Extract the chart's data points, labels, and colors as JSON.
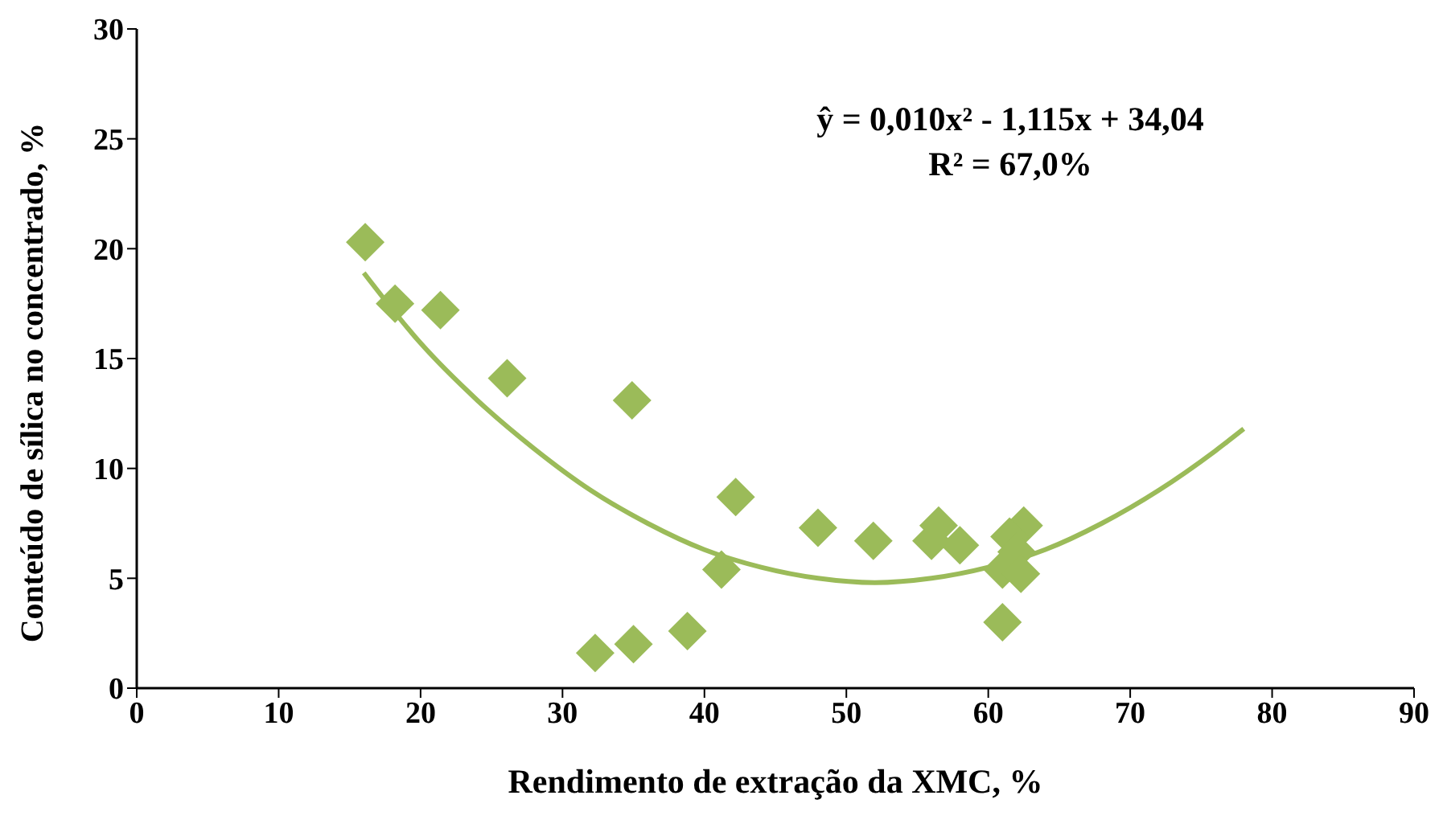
{
  "chart_data": {
    "type": "scatter",
    "xlabel": "Rendimento de extração da XMC, %",
    "ylabel": "Conteúdo de sílica no concentrado, %",
    "annotations": [
      "ŷ  = 0,010x² - 1,115x + 34,04",
      "R² = 67,0%"
    ],
    "xlim": [
      0,
      90
    ],
    "xticks": [
      0,
      10,
      20,
      30,
      40,
      50,
      60,
      70,
      80,
      90
    ],
    "ylim": [
      0,
      30
    ],
    "yticks": [
      0,
      5,
      10,
      15,
      20,
      25,
      30
    ],
    "grid": false,
    "legend": false,
    "series": [
      {
        "marker": "diamond",
        "color": "#9bbb59",
        "x": [
          16.1,
          18.2,
          21.4,
          26.1,
          34.9,
          32.3,
          35.0,
          38.8,
          41.2,
          42.2,
          48.0,
          51.9,
          56.0,
          56.5,
          58.0,
          62.5,
          61.5,
          62.0,
          61.0,
          62.3,
          61.0
        ],
        "values": [
          20.3,
          17.5,
          17.2,
          14.1,
          13.1,
          1.6,
          2.0,
          2.6,
          5.4,
          8.7,
          7.3,
          6.7,
          6.7,
          7.4,
          6.5,
          7.4,
          6.9,
          6.2,
          5.4,
          5.2,
          3.0
        ]
      },
      {
        "type": "line",
        "marker": "none",
        "color": "#9bbb59",
        "line_style": "solid",
        "x": [
          16,
          20,
          24,
          28,
          32,
          36,
          40,
          44,
          48,
          52,
          56,
          60,
          64,
          68,
          72,
          76,
          78
        ],
        "values": [
          18.9,
          15.7,
          13.1,
          10.9,
          9.0,
          7.5,
          6.3,
          5.5,
          5.0,
          4.8,
          5.0,
          5.5,
          6.3,
          7.5,
          9.0,
          10.8,
          11.8
        ]
      }
    ]
  }
}
